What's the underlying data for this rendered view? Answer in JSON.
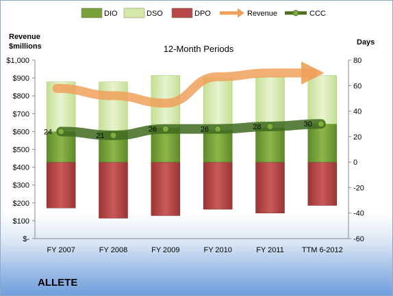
{
  "chart_data": {
    "type": "bar",
    "title": "12-Month Periods",
    "y_left_label_line1": "Revenue",
    "y_left_label_line2": "$millions",
    "y_right_label": "Days",
    "company": "ALLETE",
    "categories": [
      "FY 2007",
      "FY 2008",
      "FY 2009",
      "FY 2010",
      "FY 2011",
      "TTM 6-2012"
    ],
    "left_axis": {
      "min": 0,
      "max": 1000,
      "step": 100,
      "tick_labels": [
        "$-",
        "$100",
        "$200",
        "$300",
        "$400",
        "$500",
        "$600",
        "$700",
        "$800",
        "$900",
        "$1,000"
      ]
    },
    "right_axis": {
      "min": -60,
      "max": 80,
      "step": 20,
      "tick_labels": [
        "-60",
        "-40",
        "-20",
        "0",
        "20",
        "40",
        "60",
        "80"
      ]
    },
    "legend": {
      "placement": "top",
      "items": [
        {
          "name": "DIO",
          "color": "#7aa03a"
        },
        {
          "name": "DSO",
          "color": "#d5e8a8"
        },
        {
          "name": "DPO",
          "color": "#b54848"
        },
        {
          "name": "Revenue",
          "color": "#f0a05a"
        },
        {
          "name": "CCC",
          "color": "#4f6e28"
        }
      ]
    },
    "series": [
      {
        "name": "DIO",
        "unit": "days",
        "values": [
          24,
          24,
          27,
          25,
          27,
          30
        ]
      },
      {
        "name": "DSO",
        "unit": "days",
        "values": [
          39,
          39,
          41,
          41,
          40,
          38
        ]
      },
      {
        "name": "DPO",
        "unit": "days",
        "values": [
          -36,
          -44,
          -42,
          -37,
          -40,
          -34
        ]
      },
      {
        "name": "Revenue",
        "unit": "$millions",
        "values": [
          842,
          801,
          759,
          907,
          928,
          928
        ]
      },
      {
        "name": "CCC",
        "unit": "days",
        "values": [
          24,
          21,
          26,
          26,
          28,
          30
        ]
      }
    ],
    "ccc_labels": [
      "24",
      "21",
      "26",
      "26",
      "28",
      "30"
    ],
    "grid": false
  }
}
